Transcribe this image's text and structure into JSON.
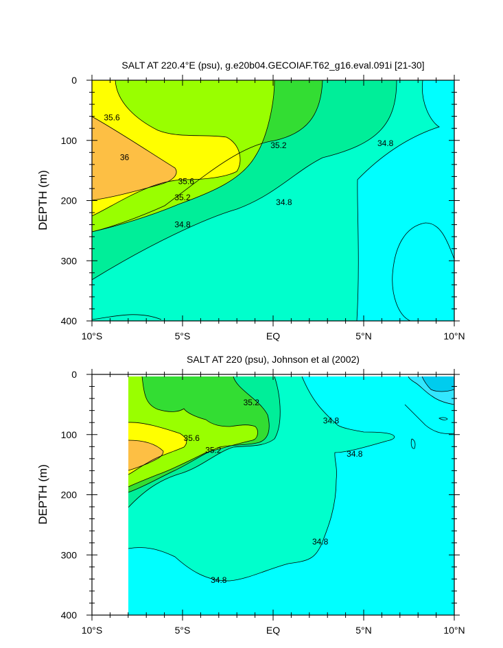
{
  "chart_data": [
    {
      "type": "contour",
      "title": "SALT AT 220.4°E (psu), g.e20b04.GECOIAF.T62_g16.eval.091i [21-30]",
      "ylabel": "DEPTH (m)",
      "xlabel": "",
      "xlim": [
        -10,
        10
      ],
      "ylim": [
        400,
        0
      ],
      "x_ticks": [
        {
          "value": -10,
          "label": "10°S"
        },
        {
          "value": -5,
          "label": "5°S"
        },
        {
          "value": 0,
          "label": "EQ"
        },
        {
          "value": 5,
          "label": "5°N"
        },
        {
          "value": 10,
          "label": "10°N"
        }
      ],
      "y_ticks": [
        0,
        100,
        200,
        300,
        400
      ],
      "fill_colors": {
        "gt_36": "#FDBF44",
        "35.6_36": "#FFFF00",
        "35.4_35.6": "#99FF00",
        "35.2_35.4": "#33DD33",
        "35.0_35.2": "#00EE99",
        "34.8_35.0": "#00FFCC",
        "lt_34.8": "#00FFFF"
      },
      "contour_labels": [
        {
          "text": "35.6",
          "x": -8.9,
          "depth": 62
        },
        {
          "text": "36",
          "x": -8.2,
          "depth": 128
        },
        {
          "text": "35.6",
          "x": -4.8,
          "depth": 168
        },
        {
          "text": "35.2",
          "x": -5.0,
          "depth": 195
        },
        {
          "text": "34.8",
          "x": -5.0,
          "depth": 240
        },
        {
          "text": "35.2",
          "x": 0.3,
          "depth": 108
        },
        {
          "text": "34.8",
          "x": 0.6,
          "depth": 203
        },
        {
          "text": "34.8",
          "x": 6.2,
          "depth": 105
        }
      ]
    },
    {
      "type": "contour",
      "title": "SALT AT 220 (psu), Johnson et al (2002)",
      "ylabel": "DEPTH (m)",
      "xlabel": "",
      "xlim": [
        -10,
        10
      ],
      "ylim": [
        400,
        0
      ],
      "data_xlim": [
        -8,
        10
      ],
      "x_ticks": [
        {
          "value": -10,
          "label": "10°S"
        },
        {
          "value": -5,
          "label": "5°S"
        },
        {
          "value": 0,
          "label": "EQ"
        },
        {
          "value": 5,
          "label": "5°N"
        },
        {
          "value": 10,
          "label": "10°N"
        }
      ],
      "y_ticks": [
        0,
        100,
        200,
        300,
        400
      ],
      "contour_labels": [
        {
          "text": "35.2",
          "x": -1.2,
          "depth": 47
        },
        {
          "text": "34.8",
          "x": 3.2,
          "depth": 77
        },
        {
          "text": "35.6",
          "x": -4.5,
          "depth": 106
        },
        {
          "text": "35.2",
          "x": -3.3,
          "depth": 126
        },
        {
          "text": "34.8",
          "x": 4.5,
          "depth": 132
        },
        {
          "text": "34.8",
          "x": 2.6,
          "depth": 278
        },
        {
          "text": "34.8",
          "x": -3.0,
          "depth": 342
        }
      ]
    }
  ]
}
